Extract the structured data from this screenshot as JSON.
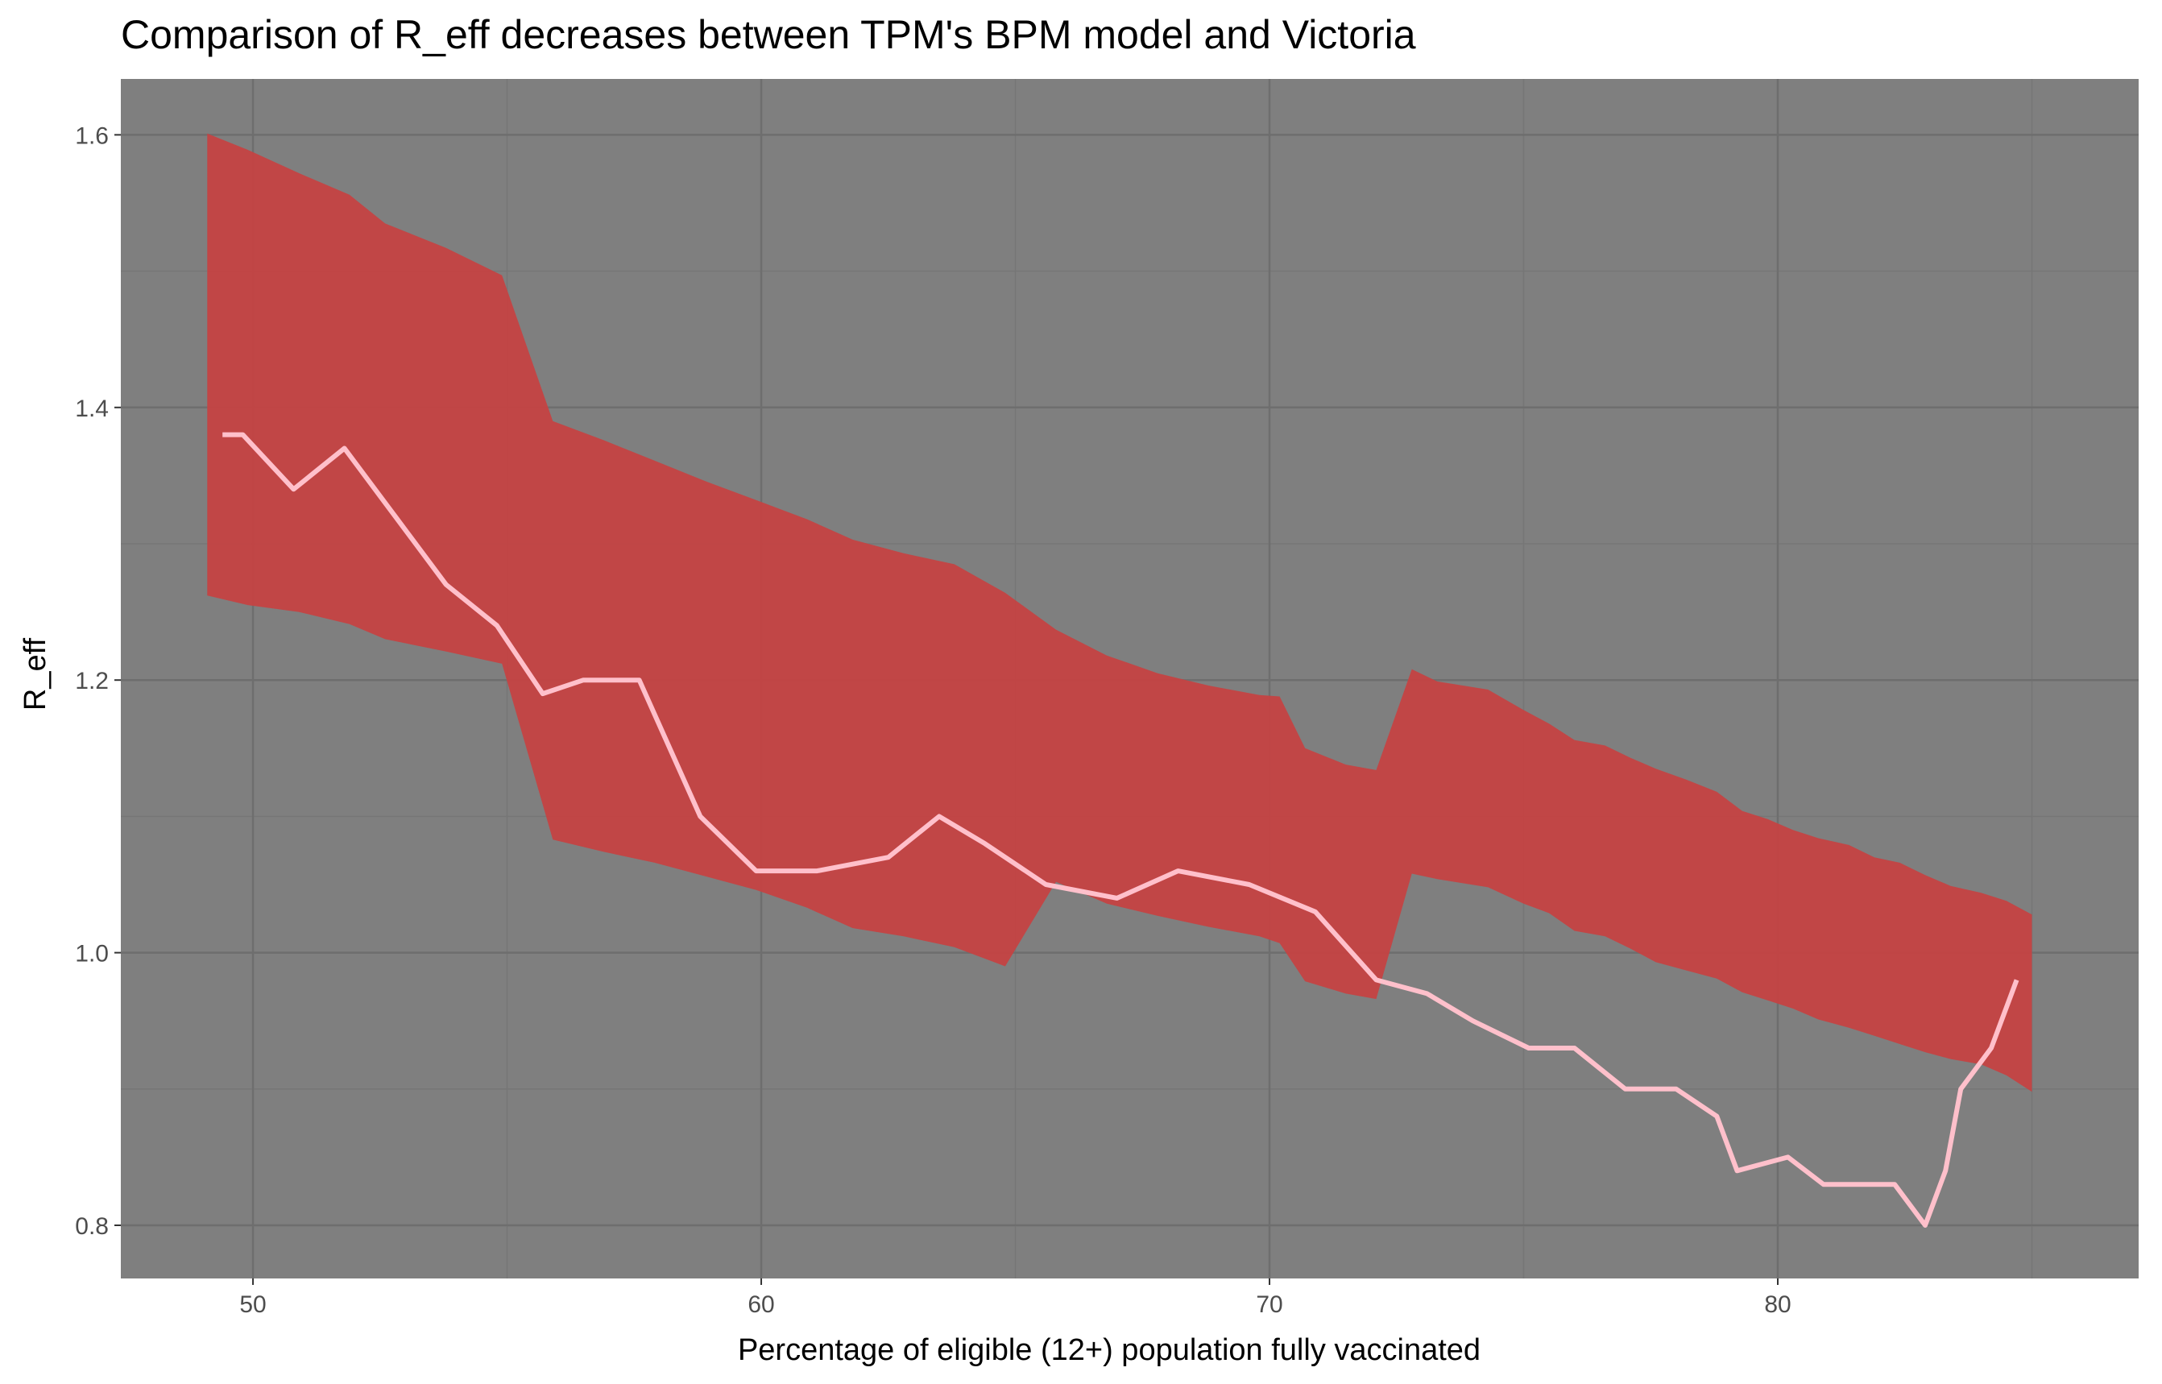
{
  "chart_data": {
    "type": "area",
    "title": "Comparison of R_eff decreases between TPM's BPM model and Victoria",
    "xlabel": "Percentage of eligible (12+) population fully vaccinated",
    "ylabel": "R_eff",
    "xlim": [
      47.4,
      87.1
    ],
    "ylim": [
      0.761,
      1.641
    ],
    "xticks": [
      50,
      60,
      70,
      80
    ],
    "yticks": [
      0.8,
      1.0,
      1.2,
      1.4,
      1.6
    ],
    "xtick_labels": [
      "50",
      "60",
      "70",
      "80"
    ],
    "ytick_labels": [
      "0.8",
      "1.0",
      "1.2",
      "1.4",
      "1.6"
    ],
    "grid": true,
    "legend": "none",
    "colors": {
      "panel_background": "#7f7f7f",
      "grid_major": "#6e6e6e",
      "grid_minor": "#767676",
      "band_fill": "#c94040",
      "line": "#ffc0cb"
    },
    "series": [
      {
        "kind": "band",
        "x": [
          49.1,
          49.9,
          50.9,
          51.9,
          52.6,
          53.8,
          54.9,
          55.9,
          56.9,
          57.9,
          58.9,
          59.9,
          60.9,
          61.8,
          62.8,
          63.8,
          64.8,
          65.8,
          66.8,
          67.8,
          68.8,
          69.8,
          70.2,
          70.7,
          71.5,
          72.1,
          72.8,
          73.3,
          74.3,
          75.0,
          75.5,
          76.0,
          76.6,
          77.1,
          77.6,
          78.2,
          78.8,
          79.3,
          79.8,
          80.3,
          80.8,
          81.4,
          81.9,
          82.4,
          82.9,
          83.4,
          84.0,
          84.5,
          85.0
        ],
        "upper": [
          1.601,
          1.589,
          1.572,
          1.556,
          1.535,
          1.517,
          1.497,
          1.39,
          1.376,
          1.361,
          1.346,
          1.332,
          1.318,
          1.303,
          1.293,
          1.285,
          1.264,
          1.237,
          1.218,
          1.205,
          1.196,
          1.189,
          1.188,
          1.15,
          1.138,
          1.134,
          1.208,
          1.199,
          1.193,
          1.178,
          1.168,
          1.156,
          1.152,
          1.143,
          1.135,
          1.127,
          1.118,
          1.104,
          1.098,
          1.09,
          1.084,
          1.079,
          1.07,
          1.066,
          1.057,
          1.049,
          1.044,
          1.038,
          1.028
        ],
        "lower": [
          1.262,
          1.255,
          1.25,
          1.241,
          1.23,
          1.221,
          1.212,
          1.083,
          1.074,
          1.066,
          1.056,
          1.046,
          1.033,
          1.018,
          1.012,
          1.004,
          0.99,
          1.052,
          1.036,
          1.027,
          1.019,
          1.012,
          1.007,
          0.979,
          0.97,
          0.966,
          1.058,
          1.054,
          1.048,
          1.036,
          1.029,
          1.016,
          1.012,
          1.003,
          0.993,
          0.987,
          0.981,
          0.971,
          0.965,
          0.959,
          0.951,
          0.945,
          0.939,
          0.933,
          0.927,
          0.922,
          0.918,
          0.91,
          0.898
        ]
      },
      {
        "kind": "line",
        "x": [
          49.4,
          49.8,
          50.8,
          51.8,
          52.8,
          53.8,
          54.8,
          55.7,
          56.5,
          57.6,
          58.8,
          59.9,
          61.1,
          62.5,
          63.5,
          64.4,
          65.6,
          67.0,
          68.2,
          69.6,
          70.9,
          72.1,
          73.1,
          74.0,
          75.1,
          76.0,
          77.0,
          78.0,
          78.8,
          79.2,
          80.2,
          80.9,
          81.6,
          82.3,
          82.9,
          83.3,
          83.6,
          84.2,
          84.7
        ],
        "y": [
          1.38,
          1.38,
          1.34,
          1.37,
          1.32,
          1.27,
          1.24,
          1.19,
          1.2,
          1.2,
          1.1,
          1.06,
          1.06,
          1.07,
          1.1,
          1.08,
          1.05,
          1.04,
          1.06,
          1.05,
          1.03,
          0.98,
          0.97,
          0.95,
          0.93,
          0.93,
          0.9,
          0.9,
          0.88,
          0.84,
          0.85,
          0.83,
          0.83,
          0.83,
          0.8,
          0.84,
          0.9,
          0.93,
          0.98
        ]
      }
    ]
  }
}
